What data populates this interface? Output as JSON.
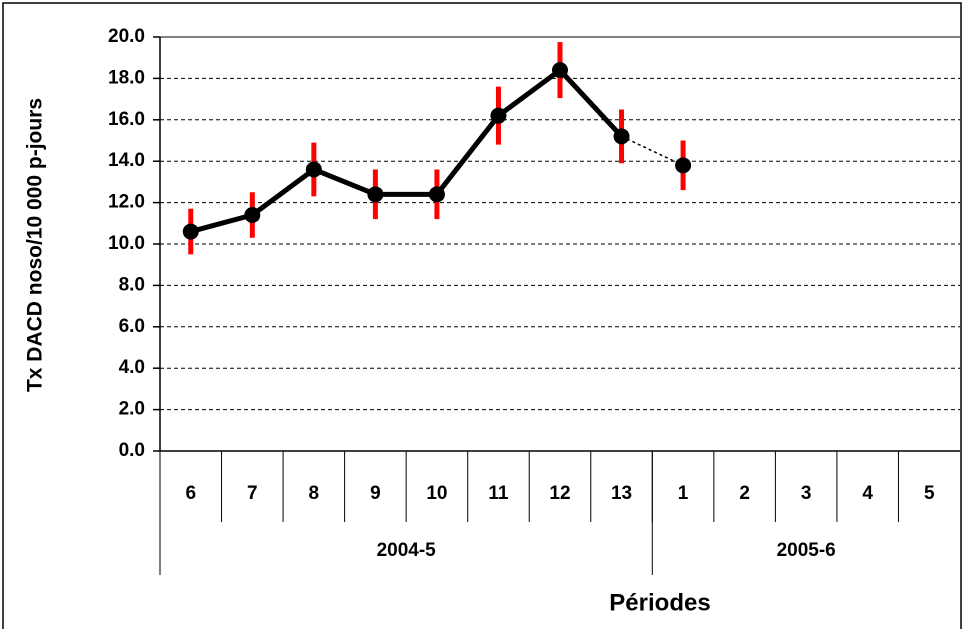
{
  "chart_data": {
    "type": "line",
    "y_label": "Tx DACD noso/10 000 p-jours",
    "x_label": "Périodes",
    "categories": [
      "6",
      "7",
      "8",
      "9",
      "10",
      "11",
      "12",
      "13",
      "1",
      "2",
      "3",
      "4",
      "5"
    ],
    "groups": [
      {
        "label": "2004-5",
        "size": 8
      },
      {
        "label": "2005-6",
        "size": 5
      }
    ],
    "series": [
      {
        "color": "#000000",
        "error_color": "#ff0000",
        "values": [
          10.6,
          11.4,
          13.6,
          12.4,
          12.4,
          16.2,
          18.4,
          15.2,
          13.8,
          null,
          null,
          null,
          null
        ],
        "errors": [
          1.1,
          1.1,
          1.3,
          1.2,
          1.2,
          1.4,
          1.35,
          1.3,
          1.2,
          null,
          null,
          null,
          null
        ],
        "dashed_last_segment": true
      }
    ],
    "ylim": [
      0,
      20
    ],
    "yticks": [
      {
        "value": 0,
        "label": "0.0"
      },
      {
        "value": 2,
        "label": "2.0"
      },
      {
        "value": 4,
        "label": "4.0"
      },
      {
        "value": 6,
        "label": "6.0"
      },
      {
        "value": 8,
        "label": "8.0"
      },
      {
        "value": 10,
        "label": "10.0"
      },
      {
        "value": 12,
        "label": "12.0"
      },
      {
        "value": 14,
        "label": "14.0"
      },
      {
        "value": 16,
        "label": "16.0"
      },
      {
        "value": 18,
        "label": "18.0"
      },
      {
        "value": 20,
        "label": "20.0"
      }
    ],
    "grid": true
  }
}
